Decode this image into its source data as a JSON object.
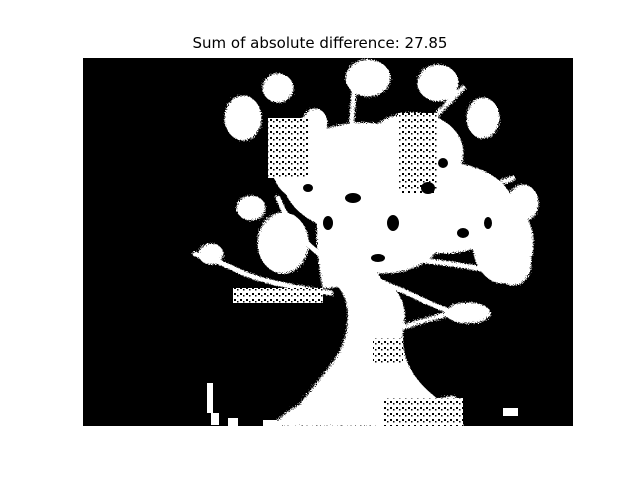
{
  "figure": {
    "title": "Sum of absolute difference: 27.85"
  },
  "image": {
    "content": "white-on-black-tree-silhouette",
    "background_color": "#000000",
    "foreground_color": "#ffffff"
  }
}
